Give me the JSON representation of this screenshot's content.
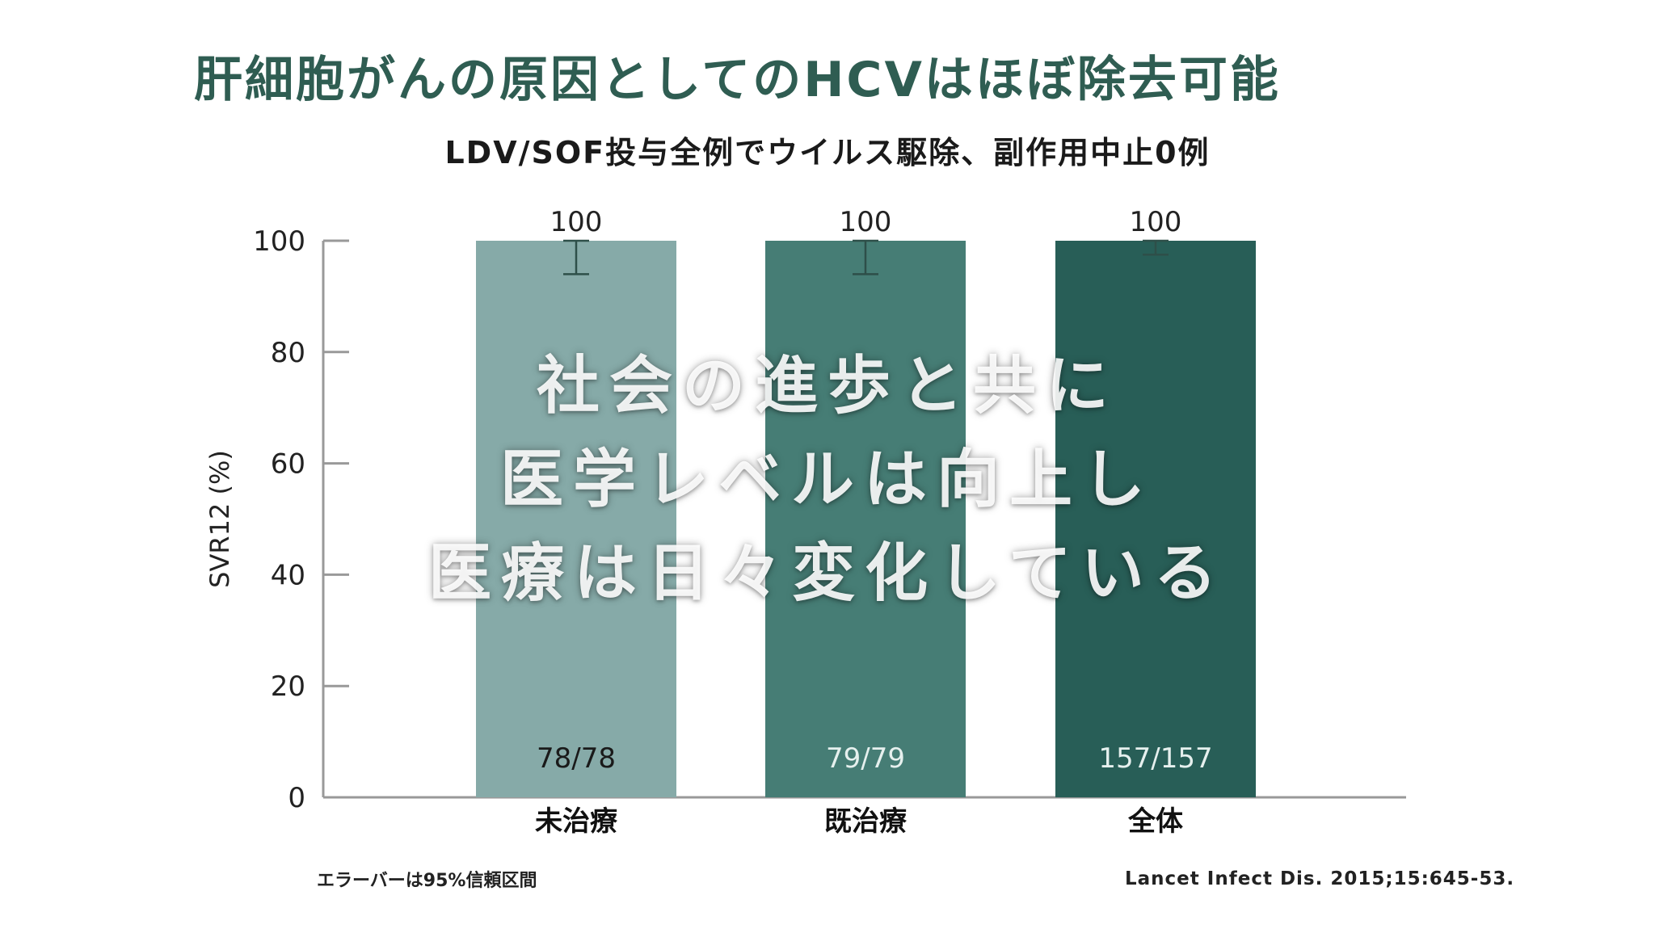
{
  "title": "肝細胞がんの原因としてのHCVはほぼ除去可能",
  "subtitle": "LDV/SOF投与全例でウイルス駆除、副作用中止0例",
  "overlay_lines": [
    "社会の進歩と共に",
    "医学レベルは向上し",
    "医療は日々変化している"
  ],
  "footnotes": {
    "left": "エラーバーは95%信頼区間",
    "right": "Lancet Infect Dis. 2015;15:645-53."
  },
  "chart_data": {
    "type": "bar",
    "ylabel": "SVR12 (%)",
    "ylim": [
      0,
      100
    ],
    "yticks": [
      0,
      20,
      40,
      60,
      80,
      100
    ],
    "categories": [
      "未治療",
      "既治療",
      "全体"
    ],
    "values": [
      100,
      100,
      100
    ],
    "value_labels": [
      "100",
      "100",
      "100"
    ],
    "counts": [
      "78/78",
      "79/79",
      "157/157"
    ],
    "error_low": [
      94,
      94,
      97.5
    ],
    "error_high": [
      100,
      100,
      100
    ],
    "colors": [
      "#86aaa8",
      "#467d75",
      "#285e57"
    ],
    "count_label_colors": [
      "#1a1a1a",
      "#e6f0ee",
      "#e6f0ee"
    ],
    "axis_color": "#999999",
    "grid": false
  }
}
